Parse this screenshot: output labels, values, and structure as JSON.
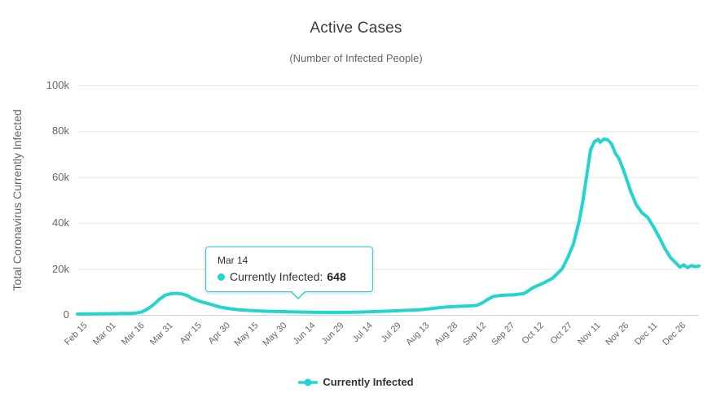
{
  "header": {
    "title": "Active Cases",
    "subtitle": "(Number of Infected People)"
  },
  "tooltip": {
    "header": "Mar 14",
    "series_label": "Currently Infected:",
    "value": "648"
  },
  "legend": {
    "label": "Currently Infected"
  },
  "colors": {
    "series": "#23d5cd",
    "grid_line": "#e6e6e6",
    "axis_line": "#ccd6eb",
    "text_muted": "#666666",
    "text_dark": "#333333"
  },
  "chart_data": {
    "type": "line",
    "title": "Active Cases",
    "subtitle": "(Number of Infected People)",
    "xlabel": "",
    "ylabel": "Total Coronavirus Currently Infected",
    "ylim": [
      0,
      100000
    ],
    "y_ticks": [
      0,
      20000,
      40000,
      60000,
      80000,
      100000
    ],
    "y_tick_labels": [
      "0",
      "20k",
      "40k",
      "60k",
      "80k",
      "100k"
    ],
    "x_tick_labels": [
      "Feb 15",
      "Mar 01",
      "Mar 16",
      "Mar 31",
      "Apr 15",
      "Apr 30",
      "May 15",
      "May 30",
      "Jun 14",
      "Jun 29",
      "Jul 14",
      "Jul 29",
      "Aug 13",
      "Aug 28",
      "Sep 12",
      "Sep 27",
      "Oct 12",
      "Oct 27",
      "Nov 11",
      "Nov 26",
      "Dec 11",
      "Dec 26"
    ],
    "x_tick_interval_days": 15,
    "x_max_day": 327,
    "grid": "horizontal",
    "legend_position": "bottom",
    "annotations": [
      {
        "type": "tooltip",
        "date": "Mar 14",
        "series": "Currently Infected",
        "value": 648
      }
    ],
    "series": [
      {
        "name": "Currently Infected",
        "color": "#23d5cd",
        "points": [
          {
            "date": "Feb 15",
            "day": 0,
            "value": 350
          },
          {
            "date": "Feb 20",
            "day": 5,
            "value": 390
          },
          {
            "date": "Feb 25",
            "day": 10,
            "value": 430
          },
          {
            "date": "Mar 01",
            "day": 15,
            "value": 480
          },
          {
            "date": "Mar 06",
            "day": 20,
            "value": 540
          },
          {
            "date": "Mar 10",
            "day": 24,
            "value": 590
          },
          {
            "date": "Mar 14",
            "day": 28,
            "value": 648
          },
          {
            "date": "Mar 17",
            "day": 31,
            "value": 800
          },
          {
            "date": "Mar 20",
            "day": 34,
            "value": 1300
          },
          {
            "date": "Mar 23",
            "day": 37,
            "value": 2600
          },
          {
            "date": "Mar 26",
            "day": 40,
            "value": 4400
          },
          {
            "date": "Mar 29",
            "day": 43,
            "value": 6700
          },
          {
            "date": "Apr 01",
            "day": 46,
            "value": 8500
          },
          {
            "date": "Apr 04",
            "day": 49,
            "value": 9200
          },
          {
            "date": "Apr 07",
            "day": 52,
            "value": 9400
          },
          {
            "date": "Apr 10",
            "day": 55,
            "value": 9100
          },
          {
            "date": "Apr 13",
            "day": 58,
            "value": 8400
          },
          {
            "date": "Apr 15",
            "day": 60,
            "value": 7300
          },
          {
            "date": "Apr 18",
            "day": 63,
            "value": 6300
          },
          {
            "date": "Apr 21",
            "day": 66,
            "value": 5500
          },
          {
            "date": "Apr 24",
            "day": 69,
            "value": 4900
          },
          {
            "date": "Apr 27",
            "day": 72,
            "value": 4100
          },
          {
            "date": "Apr 30",
            "day": 75,
            "value": 3400
          },
          {
            "date": "May 05",
            "day": 80,
            "value": 2700
          },
          {
            "date": "May 10",
            "day": 85,
            "value": 2250
          },
          {
            "date": "May 15",
            "day": 90,
            "value": 1950
          },
          {
            "date": "May 20",
            "day": 95,
            "value": 1750
          },
          {
            "date": "May 25",
            "day": 100,
            "value": 1550
          },
          {
            "date": "May 30",
            "day": 105,
            "value": 1450
          },
          {
            "date": "Jun 06",
            "day": 112,
            "value": 1300
          },
          {
            "date": "Jun 14",
            "day": 120,
            "value": 1200
          },
          {
            "date": "Jun 21",
            "day": 127,
            "value": 1100
          },
          {
            "date": "Jun 29",
            "day": 135,
            "value": 1050
          },
          {
            "date": "Jul 06",
            "day": 142,
            "value": 1100
          },
          {
            "date": "Jul 14",
            "day": 150,
            "value": 1250
          },
          {
            "date": "Jul 21",
            "day": 157,
            "value": 1450
          },
          {
            "date": "Jul 29",
            "day": 165,
            "value": 1700
          },
          {
            "date": "Aug 05",
            "day": 172,
            "value": 1950
          },
          {
            "date": "Aug 13",
            "day": 180,
            "value": 2250
          },
          {
            "date": "Aug 19",
            "day": 186,
            "value": 2700
          },
          {
            "date": "Aug 25",
            "day": 192,
            "value": 3300
          },
          {
            "date": "Aug 28",
            "day": 195,
            "value": 3500
          },
          {
            "date": "Sep 02",
            "day": 200,
            "value": 3700
          },
          {
            "date": "Sep 07",
            "day": 205,
            "value": 3850
          },
          {
            "date": "Sep 12",
            "day": 210,
            "value": 4100
          },
          {
            "date": "Sep 15",
            "day": 213,
            "value": 5200
          },
          {
            "date": "Sep 18",
            "day": 216,
            "value": 6800
          },
          {
            "date": "Sep 21",
            "day": 219,
            "value": 8100
          },
          {
            "date": "Sep 24",
            "day": 222,
            "value": 8400
          },
          {
            "date": "Sep 27",
            "day": 225,
            "value": 8600
          },
          {
            "date": "Oct 02",
            "day": 230,
            "value": 8800
          },
          {
            "date": "Oct 07",
            "day": 235,
            "value": 9300
          },
          {
            "date": "Oct 12",
            "day": 240,
            "value": 12000
          },
          {
            "date": "Oct 17",
            "day": 245,
            "value": 13800
          },
          {
            "date": "Oct 22",
            "day": 250,
            "value": 16000
          },
          {
            "date": "Oct 27",
            "day": 255,
            "value": 20000
          },
          {
            "date": "Oct 30",
            "day": 258,
            "value": 25000
          },
          {
            "date": "Nov 02",
            "day": 261,
            "value": 31000
          },
          {
            "date": "Nov 05",
            "day": 264,
            "value": 41000
          },
          {
            "date": "Nov 07",
            "day": 266,
            "value": 50000
          },
          {
            "date": "Nov 09",
            "day": 268,
            "value": 61000
          },
          {
            "date": "Nov 11",
            "day": 270,
            "value": 72000
          },
          {
            "date": "Nov 13",
            "day": 272,
            "value": 75500
          },
          {
            "date": "Nov 15",
            "day": 274,
            "value": 76500
          },
          {
            "date": "Nov 16",
            "day": 275,
            "value": 75200
          },
          {
            "date": "Nov 18",
            "day": 277,
            "value": 76600
          },
          {
            "date": "Nov 20",
            "day": 279,
            "value": 76300
          },
          {
            "date": "Nov 22",
            "day": 281,
            "value": 74500
          },
          {
            "date": "Nov 24",
            "day": 283,
            "value": 70500
          },
          {
            "date": "Nov 26",
            "day": 285,
            "value": 68000
          },
          {
            "date": "Nov 29",
            "day": 288,
            "value": 61500
          },
          {
            "date": "Dec 02",
            "day": 291,
            "value": 54000
          },
          {
            "date": "Dec 05",
            "day": 294,
            "value": 48000
          },
          {
            "date": "Dec 08",
            "day": 297,
            "value": 44500
          },
          {
            "date": "Dec 11",
            "day": 300,
            "value": 42500
          },
          {
            "date": "Dec 14",
            "day": 303,
            "value": 38500
          },
          {
            "date": "Dec 17",
            "day": 306,
            "value": 34000
          },
          {
            "date": "Dec 20",
            "day": 309,
            "value": 29000
          },
          {
            "date": "Dec 23",
            "day": 312,
            "value": 25000
          },
          {
            "date": "Dec 26",
            "day": 315,
            "value": 22500
          },
          {
            "date": "Dec 28",
            "day": 317,
            "value": 20800
          },
          {
            "date": "Dec 30",
            "day": 319,
            "value": 21800
          },
          {
            "date": "Jan 01",
            "day": 321,
            "value": 20600
          },
          {
            "date": "Jan 03",
            "day": 323,
            "value": 21500
          },
          {
            "date": "Jan 05",
            "day": 325,
            "value": 21000
          },
          {
            "date": "Jan 07",
            "day": 327,
            "value": 21300
          }
        ]
      }
    ]
  }
}
